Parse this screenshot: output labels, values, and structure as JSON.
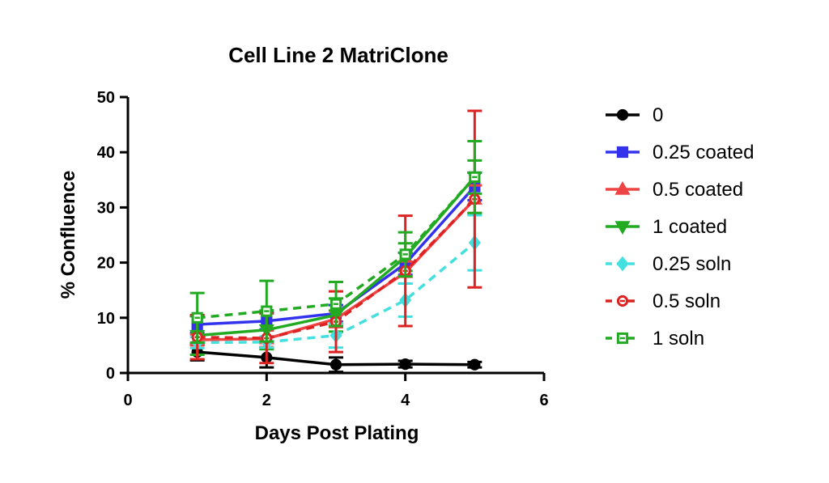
{
  "chart_data": {
    "type": "line",
    "title": "Cell Line 2 MatriClone",
    "xlabel": "Days Post Plating",
    "ylabel": "% Confluence",
    "xlim": [
      0,
      6
    ],
    "ylim": [
      0,
      50
    ],
    "xticks": [
      0,
      2,
      4,
      6
    ],
    "yticks": [
      0,
      10,
      20,
      30,
      40,
      50
    ],
    "grid": false,
    "legend_position": "right",
    "x": [
      1,
      2,
      3,
      4,
      5
    ],
    "series": [
      {
        "name": "0",
        "color": "#000000",
        "dashed": false,
        "marker": "circle",
        "filled": true,
        "values": [
          3.8,
          2.8,
          1.5,
          1.6,
          1.5
        ],
        "errors": [
          1.5,
          1.8,
          1.3,
          0.6,
          0.5
        ]
      },
      {
        "name": "0.25 coated",
        "color": "#3333ee",
        "dashed": false,
        "marker": "square",
        "filled": true,
        "values": [
          8.8,
          9.4,
          10.8,
          19.8,
          33.8
        ],
        "errors": [
          1.5,
          1.5,
          1.5,
          2.0,
          2.5
        ]
      },
      {
        "name": "0.5 coated",
        "color": "#ee4444",
        "dashed": false,
        "marker": "triangle-up",
        "filled": true,
        "values": [
          6.0,
          6.2,
          9.8,
          18.2,
          31.5
        ],
        "errors": [
          1.0,
          1.5,
          1.5,
          2.0,
          2.5
        ]
      },
      {
        "name": "1 coated",
        "color": "#22aa22",
        "dashed": false,
        "marker": "triangle-down",
        "filled": true,
        "values": [
          6.8,
          7.8,
          10.5,
          21.0,
          35.5
        ],
        "errors": [
          3.5,
          3.5,
          3.0,
          2.5,
          3.0
        ]
      },
      {
        "name": "0.25 soln",
        "color": "#44e0e0",
        "dashed": true,
        "marker": "diamond",
        "filled": true,
        "values": [
          5.5,
          5.6,
          6.8,
          13.2,
          23.6
        ],
        "errors": [
          1.0,
          1.0,
          2.2,
          3.0,
          5.0
        ]
      },
      {
        "name": "0.5 soln",
        "color": "#dd2222",
        "dashed": true,
        "marker": "circle",
        "filled": false,
        "values": [
          6.5,
          6.3,
          9.3,
          18.5,
          31.5
        ],
        "errors": [
          4.0,
          4.5,
          5.5,
          10.0,
          16.0
        ]
      },
      {
        "name": "1 soln",
        "color": "#22aa22",
        "dashed": true,
        "marker": "square",
        "filled": false,
        "values": [
          10.0,
          11.2,
          12.5,
          21.5,
          35.5
        ],
        "errors": [
          4.5,
          5.5,
          4.0,
          4.0,
          6.5
        ]
      }
    ]
  }
}
